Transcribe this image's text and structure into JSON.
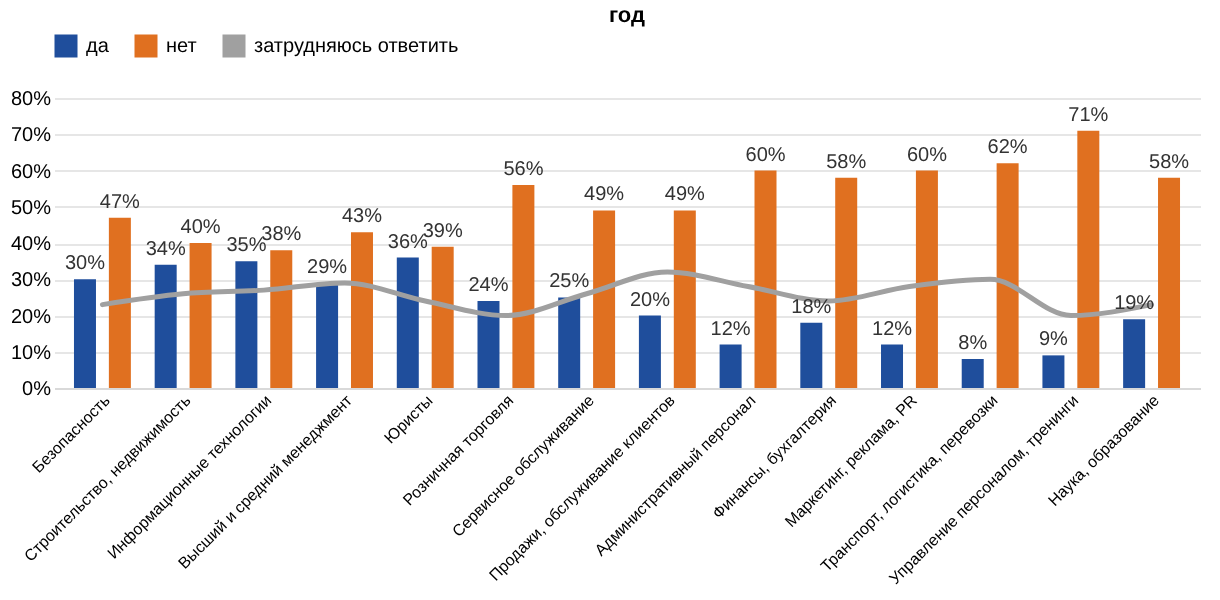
{
  "chart_data": {
    "type": "bar",
    "title": "год",
    "categories": [
      "Безопасность",
      "Строительство, недвижимость",
      "Информационные технологии",
      "Высший и средний менеджмент",
      "Юристы",
      "Розничная торговля",
      "Сервисное обслуживание",
      "Продажи, обслуживание клиентов",
      "Административный персонал",
      "Финансы, бухгалтерия",
      "Маркетинг, реклама, PR",
      "Транспорт, логистика, перевозки",
      "Управление персоналом, тренинги",
      "Наука, образование"
    ],
    "series": [
      {
        "name": "да",
        "color": "#1f4e9c",
        "values": [
          30,
          34,
          35,
          29,
          36,
          24,
          25,
          20,
          12,
          18,
          12,
          8,
          9,
          19
        ],
        "value_labels": [
          "30%",
          "34%",
          "35%",
          "29%",
          "36%",
          "24%",
          "25%",
          "20%",
          "12%",
          "18%",
          "12%",
          "8%",
          "9%",
          "19%"
        ]
      },
      {
        "name": "нет",
        "color": "#e07020",
        "values": [
          47,
          40,
          38,
          43,
          39,
          56,
          49,
          49,
          60,
          58,
          60,
          62,
          71,
          58
        ],
        "value_labels": [
          "47%",
          "40%",
          "38%",
          "43%",
          "39%",
          "56%",
          "49%",
          "49%",
          "60%",
          "58%",
          "60%",
          "62%",
          "71%",
          "58%"
        ]
      },
      {
        "name": "затрудняюсь ответить",
        "type": "line",
        "color": "#a0a0a0",
        "line_style": "solid",
        "values": [
          23,
          26,
          27,
          29,
          24,
          20,
          26,
          32,
          28,
          24,
          28,
          30,
          20,
          23
        ]
      }
    ],
    "ylim": [
      0,
      80
    ],
    "yticks": [
      {
        "value": 0,
        "label": "0%"
      },
      {
        "value": 10,
        "label": "10%"
      },
      {
        "value": 20,
        "label": "20%"
      },
      {
        "value": 30,
        "label": "30%"
      },
      {
        "value": 40,
        "label": "40%"
      },
      {
        "value": 50,
        "label": "50%"
      },
      {
        "value": 60,
        "label": "60%"
      },
      {
        "value": 70,
        "label": "70%"
      },
      {
        "value": 80,
        "label": "80%"
      }
    ],
    "grid": "y",
    "legend": "top"
  }
}
